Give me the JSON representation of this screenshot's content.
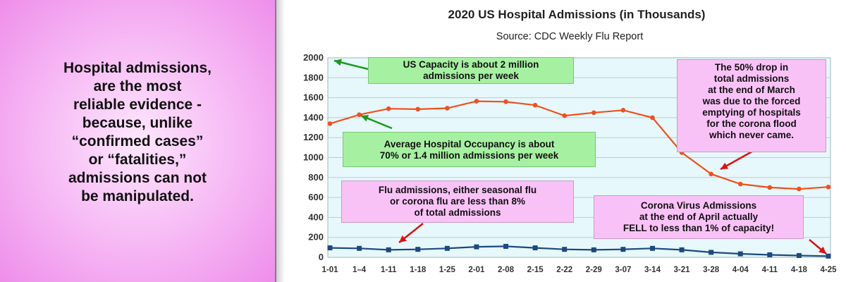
{
  "left_panel": {
    "text": "Hospital admissions,\n are the most\nreliable evidence -\nbecause, unlike\n“confirmed cases”\nor “fatalities,”\nadmissions can not\nbe manipulated."
  },
  "colors": {
    "left_bg": "#f6b6f4",
    "plot_bg": "#e6f8fb",
    "total_line": "#f0501e",
    "flu_line": "#1c4a80",
    "green_callout": "#a6f0a2",
    "pink_callout": "#f9c2f7",
    "arrow_green": "#1a9a1a",
    "arrow_red": "#e01010"
  },
  "annotations": {
    "capacity": "US Capacity is about 2 million\nadmissions per week",
    "occupancy": "Average Hospital Occupancy is about\n70% or 1.4 million admissions per week",
    "drop": "The 50% drop in\ntotal admissions\nat the end of March\nwas due to the forced\nemptying of hospitals\nfor the corona flood\nwhich never came.",
    "flu": "Flu admissions, either seasonal flu\nor corona flu are less than 8%\nof total admissions",
    "corona": "Corona Virus Admissions\nat the end of April actually\nFELL to less than 1% of capacity!"
  },
  "chart_data": {
    "type": "line",
    "title": "2020 US Hospital Admissions (in Thousands)",
    "subtitle": "Source: CDC Weekly Flu Report",
    "categories": [
      "1-01",
      "1–4",
      "1-11",
      "1-18",
      "1-25",
      "2-01",
      "2-08",
      "2-15",
      "2-22",
      "2-29",
      "3-07",
      "3-14",
      "3-21",
      "3-28",
      "4-04",
      "4-11",
      "4-18",
      "4-25"
    ],
    "yticks": [
      "0",
      "200",
      "400",
      "600",
      "800",
      "1000",
      "1200",
      "1400",
      "1600",
      "1800",
      "2000"
    ],
    "ylim": [
      0,
      2000
    ],
    "grid": true,
    "series": [
      {
        "values": [
          1340,
          1430,
          1490,
          1485,
          1495,
          1565,
          1560,
          1525,
          1420,
          1450,
          1475,
          1400,
          1050,
          835,
          735,
          700,
          685,
          705
        ]
      },
      {
        "values": [
          95,
          90,
          75,
          80,
          90,
          105,
          110,
          95,
          80,
          75,
          80,
          90,
          75,
          50,
          35,
          25,
          18,
          12
        ]
      }
    ]
  }
}
